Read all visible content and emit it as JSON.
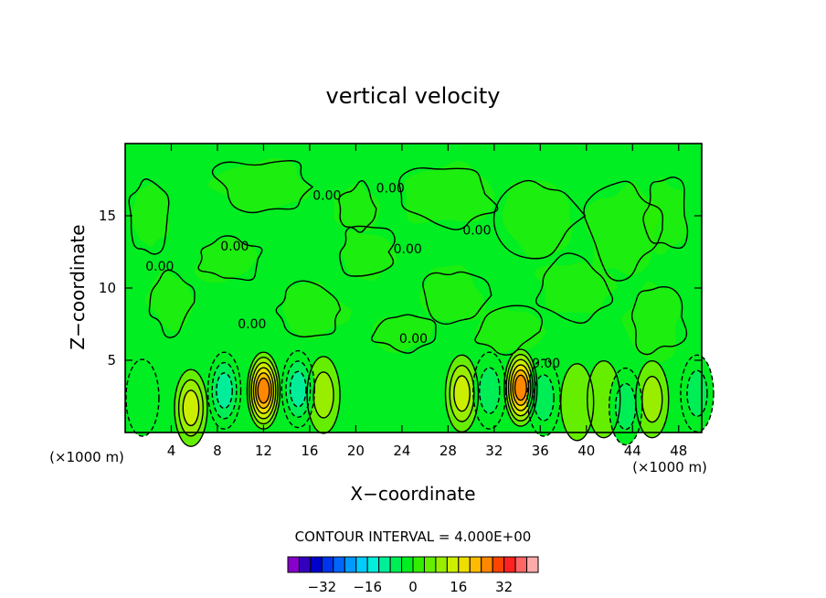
{
  "chart_data": {
    "type": "contour",
    "title": "vertical velocity",
    "xlabel": "X−coordinate",
    "ylabel": "Z−coordinate",
    "x_unit": "(×1000 m)",
    "x_unit_right": "(×1000 m)",
    "x_ticks": [
      4,
      8,
      12,
      16,
      20,
      24,
      28,
      32,
      36,
      40,
      44,
      48
    ],
    "y_ticks": [
      5,
      10,
      15
    ],
    "xlim": [
      0,
      50
    ],
    "ylim": [
      0,
      20
    ],
    "contour_interval_text": "CONTOUR INTERVAL = 4.000E+00",
    "contour_interval": 4,
    "contour_labels": [
      {
        "text": "0.00",
        "x": 17.5,
        "y": 16.1
      },
      {
        "text": "0.00",
        "x": 23.0,
        "y": 16.6
      },
      {
        "text": "0.00",
        "x": 30.5,
        "y": 13.7
      },
      {
        "text": "0.00",
        "x": 9.5,
        "y": 12.6
      },
      {
        "text": "0.00",
        "x": 24.5,
        "y": 12.4
      },
      {
        "text": "0.00",
        "x": 3.0,
        "y": 11.2
      },
      {
        "text": "0.00",
        "x": 25.0,
        "y": 6.2
      },
      {
        "text": "0.00",
        "x": 11.0,
        "y": 7.2
      },
      {
        "text": "0.00",
        "x": 36.5,
        "y": 4.5
      }
    ],
    "colorbar": {
      "ticks": [
        -32,
        -16,
        0,
        16,
        32
      ],
      "tick_labels": [
        "−32",
        "−16",
        "0",
        "16",
        "32"
      ],
      "levels": [
        -40,
        -36,
        -32,
        -28,
        -24,
        -20,
        -16,
        -12,
        -8,
        -4,
        0,
        4,
        8,
        12,
        16,
        20,
        24,
        28,
        32,
        36,
        40
      ],
      "colors": [
        "#8800cc",
        "#3300bb",
        "#0000cc",
        "#0033ee",
        "#0066ff",
        "#0099ff",
        "#00ccff",
        "#00eedd",
        "#00ee99",
        "#00ee55",
        "#00ee22",
        "#33ee00",
        "#66ee00",
        "#99ee00",
        "#ccee00",
        "#eedd00",
        "#ffbb00",
        "#ff8800",
        "#ff4400",
        "#ff2222",
        "#ff6666",
        "#ffaaaa"
      ]
    },
    "extrema": [
      {
        "x": 12,
        "z": 2.9,
        "value": 24,
        "sign": "+"
      },
      {
        "x": 34.3,
        "z": 3.1,
        "value": 24,
        "sign": "+"
      },
      {
        "x": 29.2,
        "z": 2.7,
        "value": 12,
        "sign": "+"
      },
      {
        "x": 5.7,
        "z": 1.7,
        "value": 12,
        "sign": "+"
      },
      {
        "x": 45.7,
        "z": 2.3,
        "value": 8,
        "sign": "+"
      },
      {
        "x": 17.2,
        "z": 2.6,
        "value": 8,
        "sign": "+"
      },
      {
        "x": 39.2,
        "z": 2.1,
        "value": 4,
        "sign": "+"
      },
      {
        "x": 41.5,
        "z": 2.3,
        "value": 4,
        "sign": "+"
      },
      {
        "x": 8.6,
        "z": 2.9,
        "value": -12,
        "sign": "-"
      },
      {
        "x": 15.0,
        "z": 3.0,
        "value": -12,
        "sign": "-"
      },
      {
        "x": 31.6,
        "z": 2.9,
        "value": -8,
        "sign": "-"
      },
      {
        "x": 36.3,
        "z": 2.4,
        "value": -8,
        "sign": "-"
      },
      {
        "x": 43.4,
        "z": 1.8,
        "value": -8,
        "sign": "-"
      },
      {
        "x": 49.6,
        "z": 2.7,
        "value": -8,
        "sign": "-"
      },
      {
        "x": 1.5,
        "z": 2.4,
        "value": -4,
        "sign": "-"
      }
    ]
  }
}
